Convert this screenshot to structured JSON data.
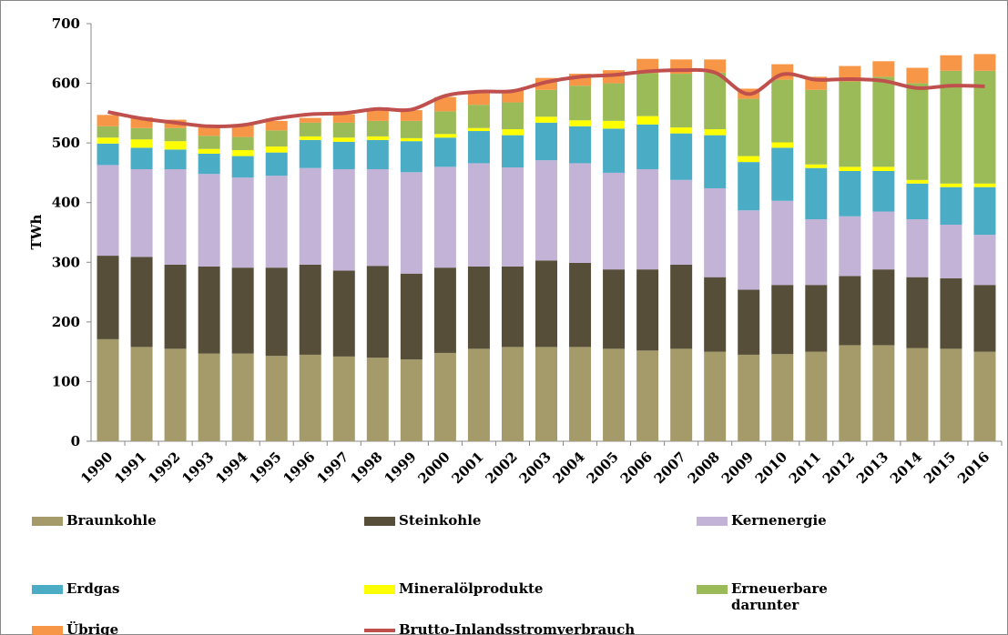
{
  "chart_data": {
    "type": "stacked-bar-line",
    "y_label": "TWh",
    "categories": [
      "1990",
      "1991",
      "1992",
      "1993",
      "1994",
      "1995",
      "1996",
      "1997",
      "1998",
      "1999",
      "2000",
      "2001",
      "2002",
      "2003",
      "2004",
      "2005",
      "2006",
      "2007",
      "2008",
      "2009",
      "2010",
      "2011",
      "2012",
      "2013",
      "2014",
      "2015",
      "2016"
    ],
    "series": [
      {
        "name": "Braunkohle",
        "color": "#a59b6a",
        "values": [
          171,
          158,
          155,
          147,
          147,
          143,
          145,
          142,
          140,
          137,
          148,
          155,
          158,
          158,
          158,
          155,
          152,
          155,
          150,
          145,
          146,
          150,
          161,
          161,
          156,
          155,
          150
        ]
      },
      {
        "name": "Steinkohle",
        "color": "#564e38",
        "values": [
          140,
          151,
          141,
          146,
          144,
          148,
          151,
          144,
          154,
          144,
          143,
          138,
          135,
          145,
          141,
          133,
          136,
          141,
          125,
          109,
          116,
          112,
          116,
          127,
          119,
          118,
          112
        ]
      },
      {
        "name": "Kernenergie",
        "color": "#c3b3d6",
        "values": [
          152,
          147,
          160,
          155,
          151,
          154,
          162,
          170,
          162,
          170,
          169,
          173,
          166,
          168,
          167,
          162,
          168,
          142,
          149,
          133,
          141,
          110,
          100,
          97,
          97,
          90,
          84
        ]
      },
      {
        "name": "Erdgas",
        "color": "#4bacc6",
        "values": [
          36,
          36,
          33,
          34,
          36,
          39,
          47,
          46,
          49,
          52,
          49,
          54,
          54,
          63,
          62,
          74,
          75,
          78,
          89,
          81,
          89,
          86,
          76,
          68,
          60,
          63,
          80
        ]
      },
      {
        "name": "Mineralölprodukte",
        "color": "#ffff00",
        "values": [
          10,
          14,
          14,
          8,
          10,
          10,
          6,
          7,
          6,
          5,
          6,
          5,
          10,
          10,
          10,
          13,
          14,
          10,
          10,
          10,
          9,
          6,
          7,
          7,
          6,
          6,
          6
        ]
      },
      {
        "name": "Erneuerbare darunter",
        "color": "#9bbb59",
        "values": [
          19,
          19,
          22,
          22,
          22,
          27,
          23,
          25,
          26,
          29,
          38,
          39,
          45,
          45,
          58,
          63,
          72,
          90,
          95,
          96,
          105,
          125,
          143,
          151,
          162,
          189,
          189
        ]
      },
      {
        "name": "Übrige Energieträger",
        "color": "#f79646",
        "values": [
          19,
          18,
          14,
          15,
          20,
          16,
          8,
          14,
          20,
          18,
          24,
          20,
          20,
          20,
          20,
          22,
          24,
          24,
          22,
          17,
          26,
          22,
          26,
          26,
          26,
          26,
          28
        ]
      }
    ],
    "line": {
      "name": "Brutto-Inlandsstromverbrauch",
      "color": "#c0504d",
      "values": [
        552,
        541,
        534,
        528,
        530,
        541,
        548,
        550,
        557,
        556,
        579,
        586,
        587,
        602,
        611,
        614,
        620,
        622,
        618,
        582,
        615,
        606,
        607,
        604,
        592,
        596,
        595
      ]
    },
    "ylim": [
      0,
      700
    ],
    "yticks": [
      0,
      100,
      200,
      300,
      400,
      500,
      600,
      700
    ]
  }
}
